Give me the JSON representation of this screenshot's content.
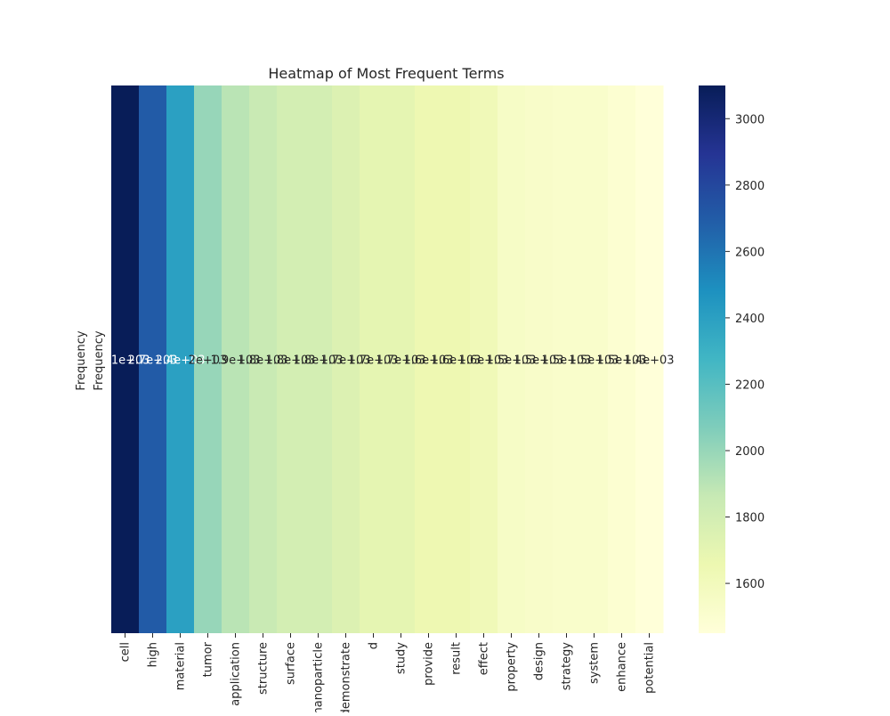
{
  "chart_data": {
    "type": "heatmap",
    "title": "Heatmap of Most Frequent Terms",
    "row_label": "Frequency",
    "ylabel": "Frequency",
    "xlabel": "",
    "categories": [
      "cell",
      "high",
      "material",
      "tumor",
      "application",
      "structure",
      "surface",
      "nanoparticle",
      "demonstrate",
      "d",
      "study",
      "provide",
      "result",
      "effect",
      "property",
      "design",
      "strategy",
      "system",
      "enhance",
      "potential"
    ],
    "values": [
      3100,
      2700,
      2400,
      2000,
      1900,
      1850,
      1800,
      1800,
      1750,
      1700,
      1700,
      1650,
      1650,
      1620,
      1550,
      1530,
      1520,
      1520,
      1490,
      1450
    ],
    "annotations": [
      "3.1e+03",
      "2.7e+03",
      "2.4e+03",
      "2e+03",
      "1.9e+03",
      "1.8e+03",
      "1.8e+03",
      "1.8e+03",
      "1.7e+03",
      "1.7e+03",
      "1.7e+03",
      "1.6e+03",
      "1.6e+03",
      "1.6e+03",
      "1.5e+03",
      "1.5e+03",
      "1.5e+03",
      "1.5e+03",
      "1.5e+03",
      "1.4e+03"
    ],
    "colorbar": {
      "min": 1450,
      "max": 3100,
      "ticks": [
        1600,
        1800,
        2000,
        2200,
        2400,
        2600,
        2800,
        3000
      ],
      "tick_labels": [
        "1600",
        "1800",
        "2000",
        "2200",
        "2400",
        "2600",
        "2800",
        "3000"
      ],
      "colormap": "YlGnBu"
    },
    "colormap_stops": [
      "#ffffd9",
      "#edf8b1",
      "#c7e9b4",
      "#7fcdbb",
      "#41b6c4",
      "#1d91c0",
      "#225ea8",
      "#253494",
      "#081d58"
    ]
  }
}
